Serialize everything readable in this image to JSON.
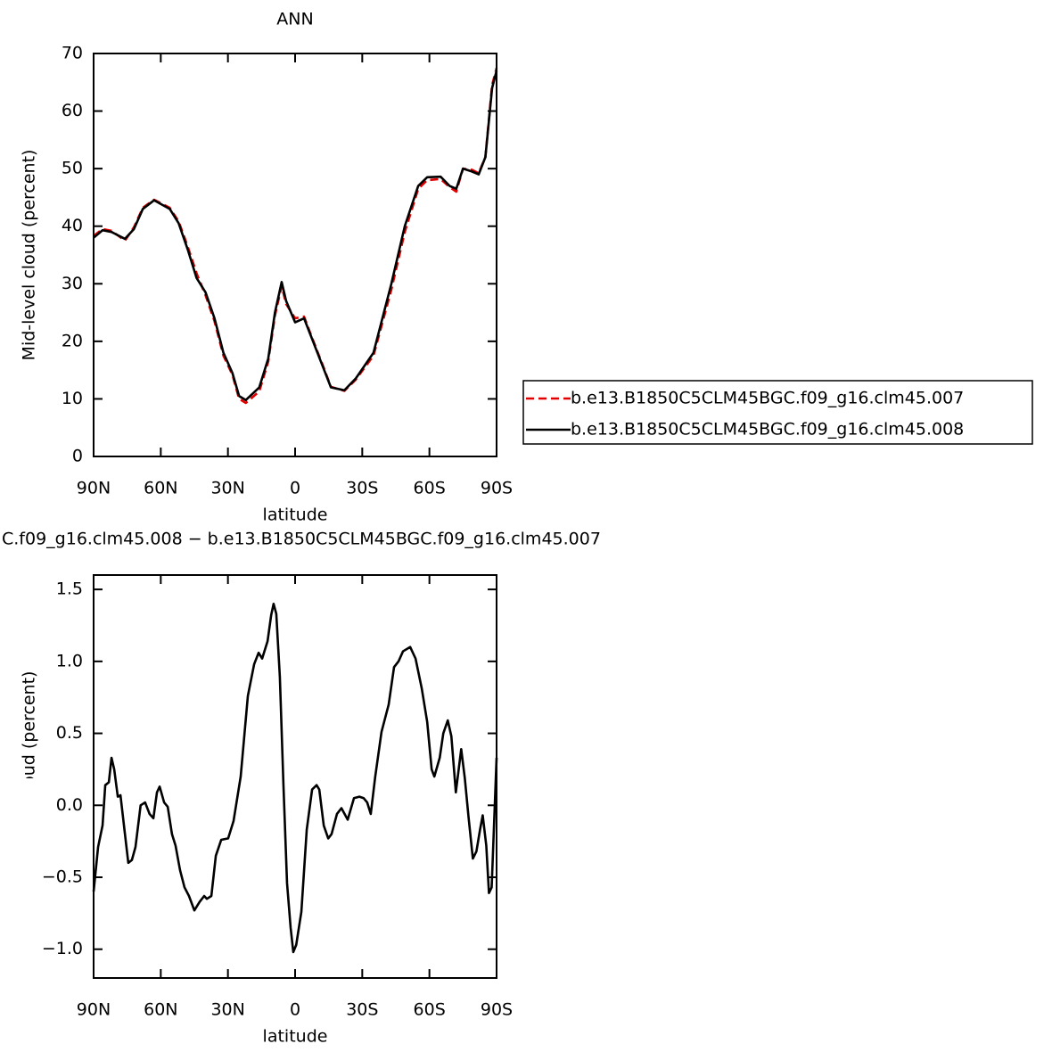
{
  "chart_data": [
    {
      "type": "line",
      "title": "ANN",
      "xlabel": "latitude",
      "ylabel": "Mid-level cloud (percent)",
      "xlim": [
        90,
        -90
      ],
      "xticks": [
        {
          "value": 90,
          "label": "90N"
        },
        {
          "value": 60,
          "label": "60N"
        },
        {
          "value": 30,
          "label": "30N"
        },
        0,
        {
          "value": -30,
          "label": "30S"
        },
        {
          "value": -60,
          "label": "60S"
        },
        {
          "value": -90,
          "label": "90S"
        }
      ],
      "ylim": [
        0,
        70
      ],
      "yticks": [
        0,
        10,
        20,
        30,
        40,
        50,
        60,
        70
      ],
      "legend": "right",
      "x": [
        90,
        86,
        82,
        76,
        72,
        68,
        63,
        56,
        52,
        48,
        44,
        40,
        36,
        32,
        28,
        25,
        22,
        16,
        12,
        9,
        6,
        4,
        0,
        -4,
        -7,
        -12,
        -16,
        -22,
        -27,
        -35,
        -43,
        -49,
        -55,
        -59,
        -65,
        -69,
        -72,
        -75,
        -79,
        -82,
        -85,
        -88,
        -90
      ],
      "series": [
        {
          "name": "b.e13.B1850C5CLM45BGC.f09_g16.clm45.007",
          "color": "#e00000",
          "linestyle": "dashed",
          "values": [
            38.3,
            39.5,
            39.2,
            37.5,
            39.8,
            43.2,
            44.6,
            43.2,
            40.8,
            36.5,
            31.8,
            28,
            23.5,
            17.5,
            14.2,
            10,
            9.3,
            11.3,
            16.5,
            24.5,
            29.6,
            26.5,
            24,
            24.3,
            21.2,
            16.2,
            12.1,
            11.4,
            13.3,
            17.5,
            29,
            39,
            46.5,
            48,
            48.2,
            46.8,
            46,
            50,
            49.8,
            49.2,
            52,
            64.5,
            67.5
          ]
        },
        {
          "name": "b.e13.B1850C5CLM45BGC.f09_g16.clm45.008",
          "color": "#000000",
          "linestyle": "solid",
          "values": [
            38,
            39.3,
            39,
            37.8,
            39.5,
            43,
            44.5,
            43,
            40.5,
            36,
            31,
            28.5,
            24,
            18,
            14.5,
            10.5,
            9.8,
            12,
            17,
            25,
            30.3,
            27,
            23.3,
            24,
            21,
            16,
            12,
            11.5,
            13.5,
            18,
            30,
            40,
            47,
            48.5,
            48.6,
            47,
            46.5,
            50,
            49.5,
            49,
            52,
            64,
            67
          ]
        }
      ]
    },
    {
      "type": "line",
      "title": "C.f09_g16.clm45.008 − b.e13.B1850C5CLM45BGC.f09_g16.clm45.007",
      "xlabel": "latitude",
      "ylabel": "Mid-level cloud (percent)",
      "xlim": [
        90,
        -90
      ],
      "xticks": [
        {
          "value": 90,
          "label": "90N"
        },
        {
          "value": 60,
          "label": "60N"
        },
        {
          "value": 30,
          "label": "30N"
        },
        0,
        {
          "value": -30,
          "label": "30S"
        },
        {
          "value": -60,
          "label": "60S"
        },
        {
          "value": -90,
          "label": "90S"
        }
      ],
      "ylim": [
        -1.2,
        1.6
      ],
      "yticks": [
        {
          "value": -1,
          "label": "−1.0"
        },
        {
          "value": -0.5,
          "label": "−0.5"
        },
        {
          "value": 0,
          "label": "0.0"
        },
        0.5,
        {
          "value": 1,
          "label": "1.0"
        },
        1.5
      ],
      "color": "#000000",
      "x": [
        90,
        88,
        86,
        84.8,
        83.2,
        82,
        80.8,
        79.2,
        78,
        76,
        74.5,
        72.9,
        71.3,
        69,
        67,
        65,
        63.3,
        61.7,
        60.5,
        58.5,
        56.9,
        55,
        53.4,
        51.4,
        49.4,
        47.4,
        45,
        42.6,
        40.6,
        39.4,
        37.4,
        35.4,
        33,
        29.9,
        27.5,
        24.3,
        21.1,
        18.3,
        16.3,
        14.7,
        12.3,
        10.7,
        9.6,
        8.4,
        6.8,
        5.2,
        3.6,
        2,
        0.8,
        -0.5,
        -2.8,
        -5.2,
        -7.6,
        -9.6,
        -10.8,
        -12.8,
        -14.8,
        -16.3,
        -18.7,
        -20.7,
        -23.5,
        -26.3,
        -28.7,
        -30.6,
        -32.2,
        -33.8,
        -35.8,
        -38.6,
        -41.8,
        -44.2,
        -46.2,
        -48.2,
        -51.4,
        -53.8,
        -56.6,
        -59,
        -61,
        -62.2,
        -64.6,
        -66.2,
        -68.2,
        -69.8,
        -71.8,
        -74.2,
        -75.8,
        -77.4,
        -79.4,
        -81,
        -82.6,
        -83.8,
        -85.4,
        -86.6,
        -87.8,
        -90
      ],
      "values": [
        -0.6,
        -0.29,
        -0.14,
        0.14,
        0.16,
        0.33,
        0.25,
        0.06,
        0.07,
        -0.2,
        -0.4,
        -0.38,
        -0.29,
        0,
        0.02,
        -0.06,
        -0.09,
        0.09,
        0.13,
        0.02,
        -0.01,
        -0.2,
        -0.28,
        -0.45,
        -0.57,
        -0.63,
        -0.73,
        -0.67,
        -0.63,
        -0.65,
        -0.63,
        -0.35,
        -0.24,
        -0.23,
        -0.11,
        0.2,
        0.76,
        0.98,
        1.06,
        1.02,
        1.14,
        1.32,
        1.4,
        1.33,
        0.89,
        0.14,
        -0.54,
        -0.85,
        -1.02,
        -0.97,
        -0.74,
        -0.17,
        0.11,
        0.14,
        0.11,
        -0.14,
        -0.23,
        -0.2,
        -0.06,
        -0.02,
        -0.1,
        0.05,
        0.06,
        0.05,
        0.02,
        -0.06,
        0.2,
        0.51,
        0.7,
        0.96,
        1,
        1.07,
        1.1,
        1.02,
        0.81,
        0.58,
        0.25,
        0.2,
        0.33,
        0.5,
        0.59,
        0.48,
        0.09,
        0.39,
        0.19,
        -0.07,
        -0.37,
        -0.32,
        -0.17,
        -0.07,
        -0.28,
        -0.61,
        -0.57,
        0.33
      ]
    }
  ]
}
